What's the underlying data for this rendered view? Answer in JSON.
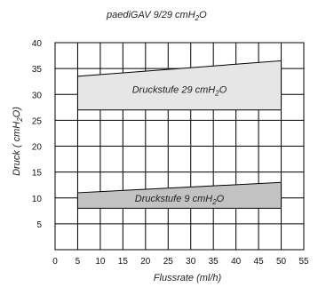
{
  "chart_data": {
    "type": "area",
    "title_main": "paediGAV 9/29 cmH",
    "title_sub": "2",
    "title_tail": "O",
    "xlabel": "Flussrate (ml/h)",
    "ylabel_main": "Druck ( cmH",
    "ylabel_sub": "2",
    "ylabel_tail": "O)",
    "xlim": [
      0,
      55
    ],
    "ylim": [
      0,
      40
    ],
    "x_ticks": [
      0,
      5,
      10,
      15,
      20,
      25,
      30,
      35,
      40,
      45,
      50,
      55
    ],
    "y_ticks": [
      5,
      10,
      15,
      20,
      25,
      30,
      35,
      40
    ],
    "grid": true,
    "bands": [
      {
        "name_main": "Druckstufe 29 cmH",
        "name_sub": "2",
        "name_tail": "O",
        "x": [
          5,
          50
        ],
        "lower": [
          27,
          27
        ],
        "upper": [
          33.5,
          36.5
        ],
        "color": "#e6e6e6"
      },
      {
        "name_main": "Druckstufe 9 cmH",
        "name_sub": "2",
        "name_tail": "O",
        "x": [
          5,
          50
        ],
        "lower": [
          8,
          8
        ],
        "upper": [
          11,
          13
        ],
        "color": "#c2c2c2"
      }
    ]
  }
}
